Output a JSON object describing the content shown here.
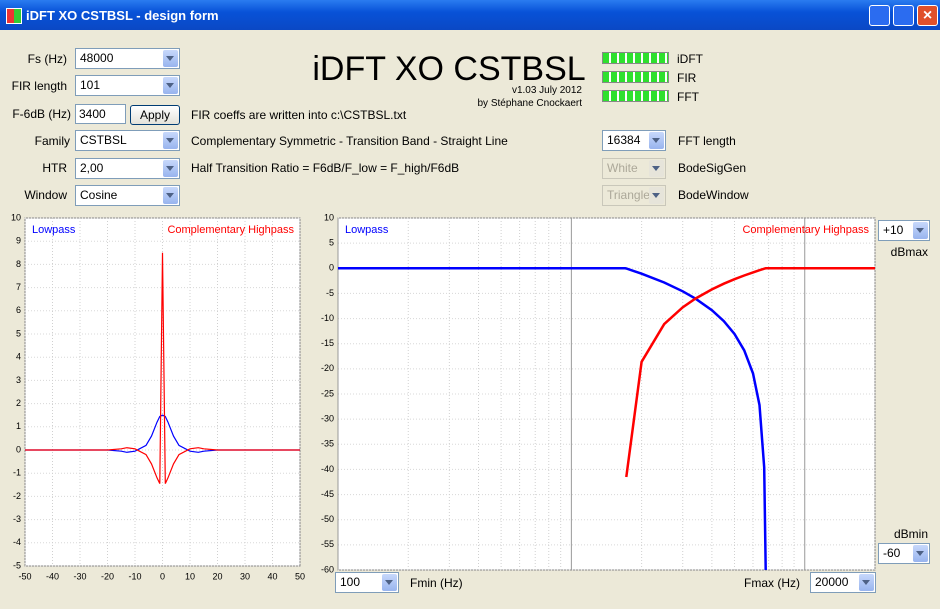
{
  "window": {
    "title": "iDFT XO CSTBSL  - design form"
  },
  "form": {
    "fs": {
      "label": "Fs (Hz)",
      "value": "48000"
    },
    "fir_length": {
      "label": "FIR length",
      "value": "101"
    },
    "f6db": {
      "label": "F-6dB (Hz)",
      "value": "3400",
      "button": "Apply",
      "note": "FIR coeffs are written into c:\\CSTBSL.txt"
    },
    "family": {
      "label": "Family",
      "value": "CSTBSL",
      "note": "Complementary Symmetric - Transition Band  - Straight Line"
    },
    "htr": {
      "label": "HTR",
      "value": "2,00",
      "note": "Half Transition Ratio = F6dB/F_low = F_high/F6dB"
    },
    "window": {
      "label": "Window",
      "value": "Cosine"
    }
  },
  "header": {
    "title": "iDFT XO CSTBSL",
    "version": "v1.03 July 2012",
    "author": "by Stéphane Cnockaert"
  },
  "status": [
    {
      "label": "iDFT"
    },
    {
      "label": "FIR"
    },
    {
      "label": "FFT"
    }
  ],
  "fft": {
    "value": "16384",
    "label": "FFT length"
  },
  "bode_sig_gen": {
    "value": "White",
    "label": "BodeSigGen"
  },
  "bode_window": {
    "value": "Triangle",
    "label": "BodeWindow"
  },
  "response_controls": {
    "dbmax": {
      "value": "+10",
      "label": "dBmax"
    },
    "dbmin": {
      "value": "-60",
      "label": "dBmin"
    },
    "fmin": {
      "value": "100",
      "label": "Fmin (Hz)"
    },
    "fmax": {
      "value": "20000",
      "label": "Fmax (Hz)"
    }
  },
  "chart_data": [
    {
      "type": "line",
      "grid": true,
      "x": [
        -50,
        -20,
        -15,
        -13,
        -10,
        -6,
        -4,
        -2,
        -1,
        0,
        1,
        2,
        4,
        6,
        10,
        13,
        15,
        20,
        50
      ],
      "series": [
        {
          "name": "Lowpass",
          "color": "#0000ff",
          "values": [
            0,
            0,
            -0.05,
            -0.1,
            -0.05,
            0.2,
            0.6,
            1.2,
            1.45,
            1.5,
            1.45,
            1.2,
            0.6,
            0.2,
            -0.05,
            -0.1,
            -0.05,
            0,
            0
          ]
        },
        {
          "name": "Complementary Highpass",
          "color": "#ff0000",
          "values": [
            0,
            0,
            0.05,
            0.1,
            0.05,
            -0.2,
            -0.6,
            -1.2,
            -1.45,
            8.5,
            -1.45,
            -1.2,
            -0.6,
            -0.2,
            0.05,
            0.1,
            0.05,
            0,
            0
          ]
        }
      ],
      "xlim": [
        -50,
        50
      ],
      "ylim": [
        -5,
        10
      ],
      "xticks": [
        -50,
        -40,
        -30,
        -20,
        -10,
        0,
        10,
        20,
        30,
        40,
        50
      ],
      "yticks": [
        -5,
        -4,
        -3,
        -2,
        -1,
        0,
        1,
        2,
        3,
        4,
        5,
        6,
        7,
        8,
        9,
        10
      ]
    },
    {
      "type": "line",
      "grid": true,
      "log_x": true,
      "x": [
        100,
        1000,
        1700,
        1720,
        2000,
        2500,
        3000,
        3400,
        4000,
        4500,
        5000,
        5500,
        6000,
        6400,
        6700,
        6800,
        10000,
        20000
      ],
      "series": [
        {
          "name": "Lowpass",
          "color": "#0000ff",
          "values": [
            0,
            0,
            0,
            -0.04,
            -1.08,
            -2.83,
            -4.58,
            -6.02,
            -8.34,
            -10.5,
            -13.07,
            -16.3,
            -20.9,
            -27.2,
            -39.6,
            -60,
            null,
            null
          ]
        },
        {
          "name": "Complementary Highpass",
          "color": "#ff0000",
          "values": [
            null,
            null,
            null,
            -41.5,
            -18.6,
            -11.1,
            -7.75,
            -6.02,
            -4.19,
            -3.07,
            -2.18,
            -1.44,
            -0.82,
            -0.38,
            -0.09,
            0,
            0,
            0
          ]
        }
      ],
      "xlim": [
        100,
        20000
      ],
      "ylim": [
        -60,
        10
      ],
      "xgrid": [
        100,
        200,
        300,
        400,
        500,
        600,
        700,
        800,
        900,
        1000,
        2000,
        3000,
        4000,
        5000,
        6000,
        7000,
        8000,
        9000,
        10000,
        20000
      ],
      "yticks": [
        -60,
        -55,
        -50,
        -45,
        -40,
        -35,
        -30,
        -25,
        -20,
        -15,
        -10,
        -5,
        0,
        5,
        10
      ]
    }
  ]
}
